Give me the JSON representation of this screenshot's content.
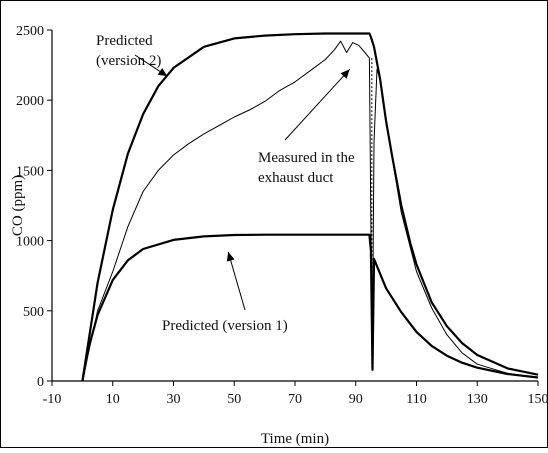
{
  "chart_data": {
    "type": "line",
    "xlabel": "Time (min)",
    "ylabel": "CO (ppm)",
    "xlim": [
      -10,
      150
    ],
    "ylim": [
      0,
      2500
    ],
    "xticks": [
      -10,
      10,
      30,
      50,
      70,
      90,
      110,
      130,
      150
    ],
    "yticks": [
      0,
      500,
      1000,
      1500,
      2000,
      2500
    ],
    "grid": false,
    "legend": "none",
    "series": [
      {
        "color": "#000000",
        "style": "thick",
        "points": [
          [
            0,
            0
          ],
          [
            2,
            230
          ],
          [
            5,
            470
          ],
          [
            10,
            720
          ],
          [
            15,
            860
          ],
          [
            20,
            940
          ],
          [
            30,
            1005
          ],
          [
            40,
            1030
          ],
          [
            50,
            1040
          ],
          [
            60,
            1042
          ],
          [
            70,
            1042
          ],
          [
            80,
            1042
          ],
          [
            90,
            1042
          ],
          [
            94.5,
            1042
          ],
          [
            95,
            930
          ],
          [
            95.5,
            80
          ],
          [
            96,
            870
          ],
          [
            100,
            660
          ],
          [
            105,
            490
          ],
          [
            110,
            350
          ],
          [
            115,
            250
          ],
          [
            120,
            180
          ],
          [
            125,
            130
          ],
          [
            130,
            95
          ],
          [
            140,
            50
          ],
          [
            150,
            25
          ]
        ]
      },
      {
        "color": "#000000",
        "style": "thick",
        "points": [
          [
            0,
            0
          ],
          [
            5,
            700
          ],
          [
            10,
            1220
          ],
          [
            15,
            1620
          ],
          [
            20,
            1900
          ],
          [
            25,
            2100
          ],
          [
            30,
            2230
          ],
          [
            40,
            2380
          ],
          [
            50,
            2440
          ],
          [
            60,
            2460
          ],
          [
            70,
            2470
          ],
          [
            80,
            2475
          ],
          [
            94.5,
            2475
          ],
          [
            95,
            2450
          ],
          [
            96,
            2380
          ],
          [
            98,
            2150
          ],
          [
            100,
            1850
          ],
          [
            102,
            1600
          ],
          [
            105,
            1250
          ],
          [
            108,
            980
          ],
          [
            110,
            830
          ],
          [
            115,
            560
          ],
          [
            120,
            390
          ],
          [
            125,
            270
          ],
          [
            130,
            185
          ],
          [
            140,
            90
          ],
          [
            150,
            45
          ]
        ]
      },
      {
        "color": "#000000",
        "style": "thin",
        "points": [
          [
            0,
            0
          ],
          [
            5,
            500
          ],
          [
            10,
            780
          ],
          [
            15,
            1100
          ],
          [
            20,
            1350
          ],
          [
            25,
            1500
          ],
          [
            30,
            1610
          ],
          [
            35,
            1690
          ],
          [
            40,
            1760
          ],
          [
            45,
            1820
          ],
          [
            50,
            1880
          ],
          [
            55,
            1930
          ],
          [
            60,
            1990
          ],
          [
            65,
            2070
          ],
          [
            70,
            2130
          ],
          [
            75,
            2210
          ],
          [
            80,
            2290
          ],
          [
            83,
            2360
          ],
          [
            85,
            2420
          ],
          [
            87,
            2340
          ],
          [
            89,
            2410
          ],
          [
            91,
            2390
          ],
          [
            93,
            2340
          ],
          [
            94.5,
            2300
          ],
          [
            95,
            1100
          ],
          [
            95.5,
            300
          ],
          [
            96,
            1700
          ],
          [
            97,
            2220
          ],
          [
            98,
            2150
          ],
          [
            100,
            1850
          ],
          [
            105,
            1200
          ],
          [
            110,
            780
          ],
          [
            115,
            520
          ],
          [
            120,
            330
          ],
          [
            125,
            200
          ],
          [
            130,
            120
          ],
          [
            140,
            55
          ],
          [
            150,
            25
          ]
        ]
      }
    ],
    "annotations": [
      {
        "lines": [
          "Predicted",
          "(version 2)"
        ],
        "target": [
          28,
          2170
        ]
      },
      {
        "lines": [
          "Measured in the",
          "exhaust duct"
        ],
        "target": [
          88,
          2220
        ]
      },
      {
        "lines": [
          "Predicted (version 1)"
        ],
        "target": [
          48,
          920
        ]
      }
    ]
  }
}
